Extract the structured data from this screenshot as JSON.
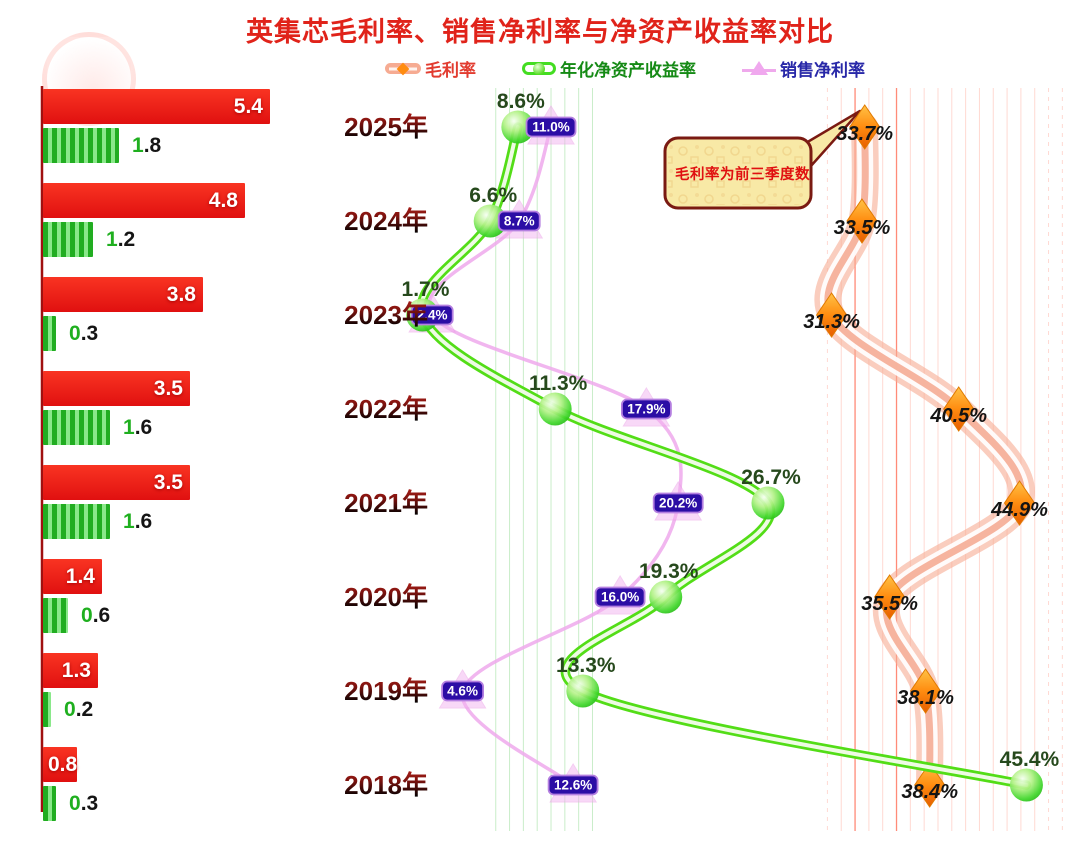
{
  "title": "英集芯毛利率、销售净利率与净资产收益率对比",
  "colors": {
    "title": "#e0231a",
    "bar_red": "#ed1515",
    "bar_green": "#2eb82e",
    "gross_ribbon": "#f6ab92",
    "gross_marker": "#ff8c10",
    "roe_line": "#53dd17",
    "net_line": "#efa9ec",
    "net_badge_bg": "#2b0da5",
    "grid_red": "#ff7b62",
    "grid_green": "#c9edc9"
  },
  "legend": {
    "items": [
      {
        "label": "毛利率",
        "text_color": "#e23c30"
      },
      {
        "label": "年化净资产收益率",
        "text_color": "#158a15"
      },
      {
        "label": "销售净利率",
        "text_color": "#2828a8"
      }
    ]
  },
  "annotation": {
    "text": "毛利率为前三季度数"
  },
  "chart_data": {
    "type": "line",
    "title": "英集芯毛利率、销售净利率与净资产收益率对比",
    "categories": [
      "2025年",
      "2024年",
      "2023年",
      "2022年",
      "2021年",
      "2020年",
      "2019年",
      "2018年"
    ],
    "bar_series": [
      {
        "name": "red-bars",
        "color": "#ed1515",
        "values": [
          5.4,
          4.8,
          3.8,
          3.5,
          3.5,
          1.4,
          1.3,
          0.8
        ]
      },
      {
        "name": "green-bars",
        "color": "#2eb82e",
        "values": [
          1.8,
          1.2,
          0.3,
          1.6,
          1.6,
          0.6,
          0.2,
          0.3
        ]
      }
    ],
    "series": [
      {
        "name": "毛利率",
        "color": "#f6ab92",
        "marker": "diamond",
        "label_color": "#141414",
        "values": [
          33.7,
          33.5,
          31.3,
          40.5,
          44.9,
          35.5,
          38.1,
          38.4
        ]
      },
      {
        "name": "年化净资产收益率",
        "color": "#53dd17",
        "marker": "sphere",
        "label_color": "#26491c",
        "values": [
          8.6,
          6.6,
          1.7,
          11.3,
          26.7,
          19.3,
          13.3,
          45.4
        ]
      },
      {
        "name": "销售净利率",
        "color": "#efa9ec",
        "marker": "triangle",
        "label_color": "#ffffff",
        "values": [
          11.0,
          8.7,
          2.4,
          17.9,
          20.2,
          16.0,
          4.6,
          12.6
        ]
      }
    ],
    "value_axis_range": [
      0,
      49
    ],
    "grid": true,
    "legend_position": "top",
    "annotation": "毛利率为前三季度数"
  }
}
